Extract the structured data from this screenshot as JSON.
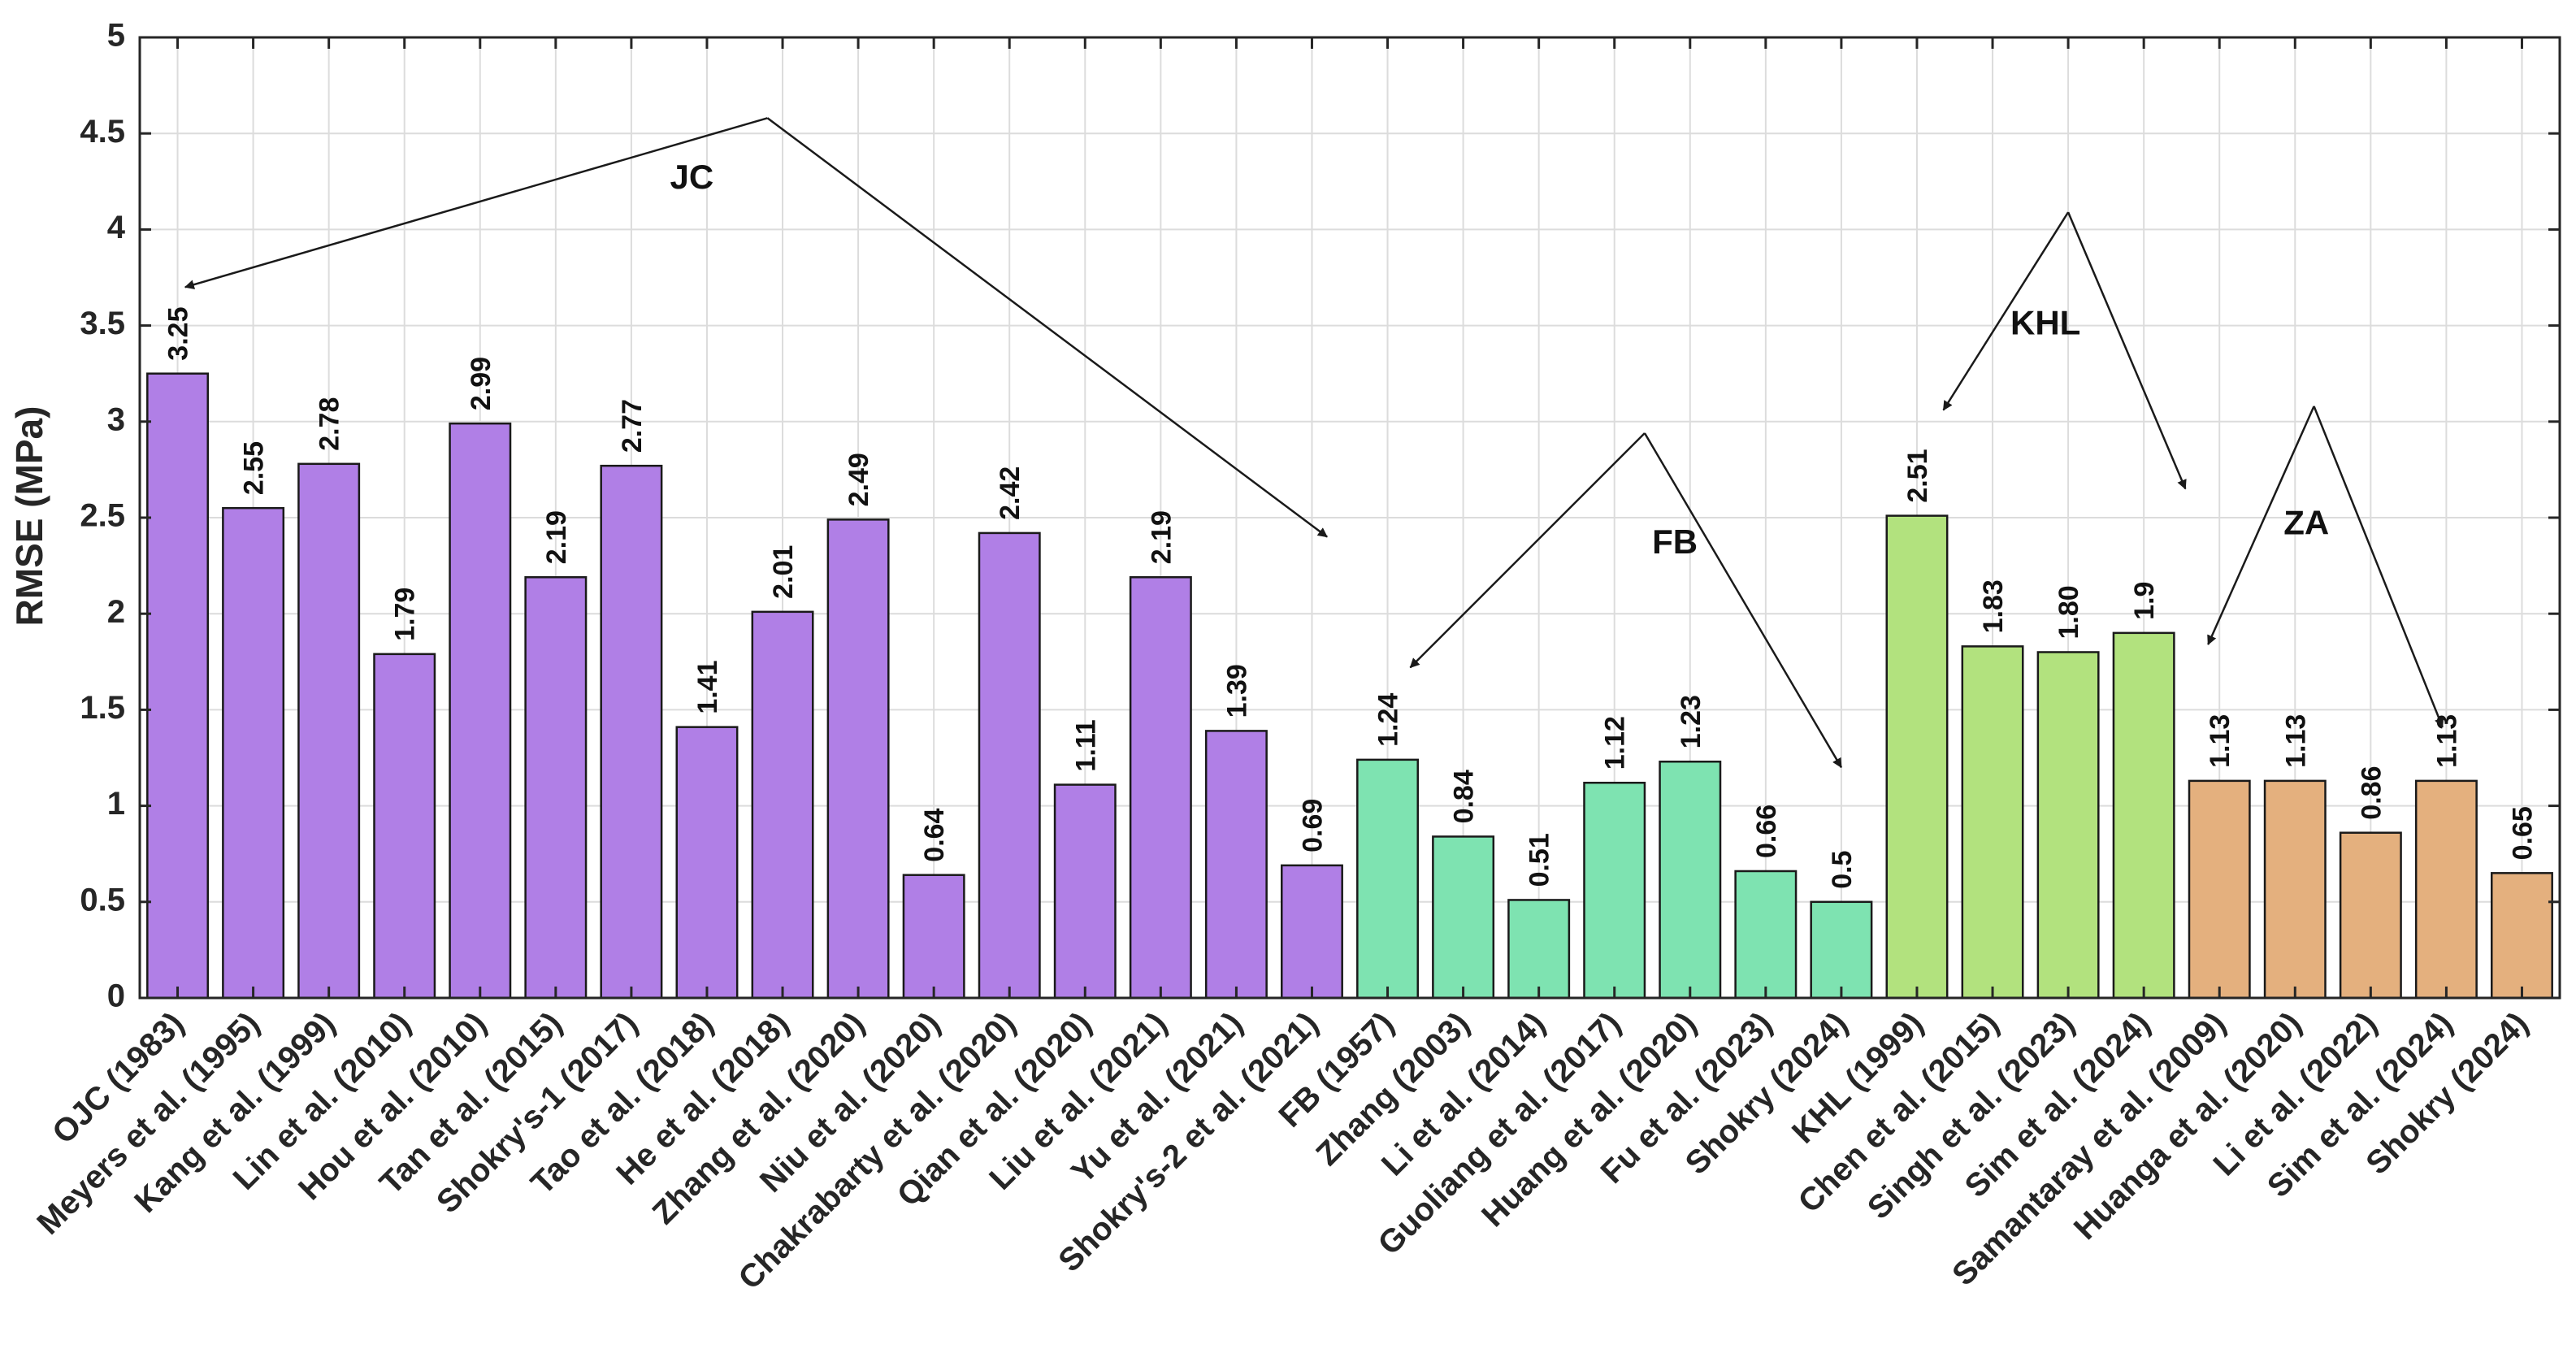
{
  "chart_data": {
    "type": "bar",
    "ylabel": "RMSE (MPa)",
    "xlabel": "",
    "ylim": [
      0,
      5
    ],
    "yticks": [
      0,
      0.5,
      1,
      1.5,
      2,
      2.5,
      3,
      3.5,
      4,
      4.5,
      5
    ],
    "ytick_labels": [
      "0",
      "0.5",
      "1",
      "1.5",
      "2",
      "2.5",
      "3",
      "3.5",
      "4",
      "4.5",
      "5"
    ],
    "grid": true,
    "categories": [
      "OJC (1983)",
      "Meyers et al. (1995)",
      "Kang et al. (1999)",
      "Lin et al. (2010)",
      "Hou et al. (2010)",
      "Tan et al. (2015)",
      "Shokry's-1 (2017)",
      "Tao et al. (2018)",
      "He et al. (2018)",
      "Zhang et al. (2020)",
      "Niu et al. (2020)",
      "Chakrabarty et al. (2020)",
      "Qian et al. (2020)",
      "Liu et al. (2021)",
      "Yu et al. (2021)",
      "Shokry's-2 et al. (2021)",
      "FB (1957)",
      "Zhang (2003)",
      "Li et al. (2014)",
      "Guoliang et al. (2017)",
      "Huang et al. (2020)",
      "Fu et al. (2023)",
      "Shokry (2024)",
      "KHL (1999)",
      "Chen et al. (2015)",
      "Singh et al. (2023)",
      "Sim et al. (2024)",
      "Samantaray et al. (2009)",
      "Huanga et al. (2020)",
      "Li et al. (2022)",
      "Sim et al. (2024)",
      "Shokry (2024)"
    ],
    "values": [
      3.25,
      2.55,
      2.78,
      1.79,
      2.99,
      2.19,
      2.77,
      1.41,
      2.01,
      2.49,
      0.64,
      2.42,
      1.11,
      2.19,
      1.39,
      0.69,
      1.24,
      0.84,
      0.51,
      1.12,
      1.23,
      0.66,
      0.5,
      2.51,
      1.83,
      1.8,
      1.9,
      1.13,
      1.13,
      0.86,
      1.13,
      0.65
    ],
    "value_labels": [
      "3.25",
      "2.55",
      "2.78",
      "1.79",
      "2.99",
      "2.19",
      "2.77",
      "1.41",
      "2.01",
      "2.49",
      "0.64",
      "2.42",
      "1.11",
      "2.19",
      "1.39",
      "0.69",
      "1.24",
      "0.84",
      "0.51",
      "1.12",
      "1.23",
      "0.66",
      "0.5",
      "2.51",
      "1.83",
      "1.80",
      "1.9",
      "1.13",
      "1.13",
      "0.86",
      "1.13",
      "0.65"
    ],
    "groups": [
      {
        "name": "JC",
        "color": "#b07fe6",
        "start": 0,
        "end": 15,
        "label_pos": [
          6.8,
          4.26
        ],
        "arrow_apex": [
          7.8,
          4.58
        ],
        "arrow_targets": [
          [
            0.1,
            3.7
          ],
          [
            15.2,
            2.4
          ]
        ]
      },
      {
        "name": "FB",
        "color": "#7ee3b1",
        "start": 16,
        "end": 22,
        "label_pos": [
          19.8,
          2.36
        ],
        "arrow_apex": [
          19.4,
          2.94
        ],
        "arrow_targets": [
          [
            16.3,
            1.72
          ],
          [
            22.0,
            1.2
          ]
        ]
      },
      {
        "name": "KHL",
        "color": "#b2e27e",
        "start": 23,
        "end": 26,
        "label_pos": [
          24.7,
          3.5
        ],
        "arrow_apex": [
          25.0,
          4.09
        ],
        "arrow_targets": [
          [
            23.35,
            3.06
          ],
          [
            26.55,
            2.65
          ]
        ]
      },
      {
        "name": "ZA",
        "color": "#e4b07e",
        "start": 27,
        "end": 31,
        "label_pos": [
          28.15,
          2.46
        ],
        "arrow_apex": [
          28.25,
          3.08
        ],
        "arrow_targets": [
          [
            26.85,
            1.84
          ],
          [
            29.95,
            1.41
          ]
        ]
      }
    ]
  }
}
